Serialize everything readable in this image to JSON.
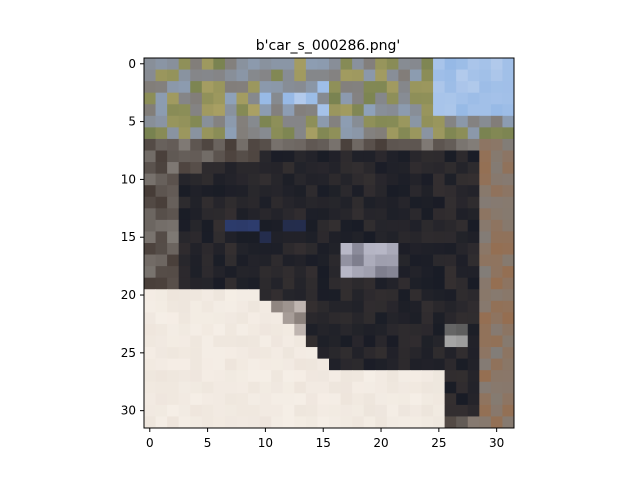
{
  "chart_data": {
    "type": "heatmap",
    "title": "b'car_s_000286.png'",
    "xlabel": "",
    "ylabel": "",
    "xlim": [
      -0.5,
      31.5
    ],
    "ylim": [
      31.5,
      -0.5
    ],
    "x_ticks": [
      0,
      5,
      10,
      15,
      20,
      25,
      30
    ],
    "y_ticks": [
      0,
      5,
      10,
      15,
      20,
      25,
      30
    ],
    "grid": false,
    "legend": "none",
    "image_size": [
      32,
      32
    ],
    "content_description": "Low-resolution 32x32 RGB image of a dark car on a road, sky and trees in the top rows, light road surface in the bottom-left."
  }
}
